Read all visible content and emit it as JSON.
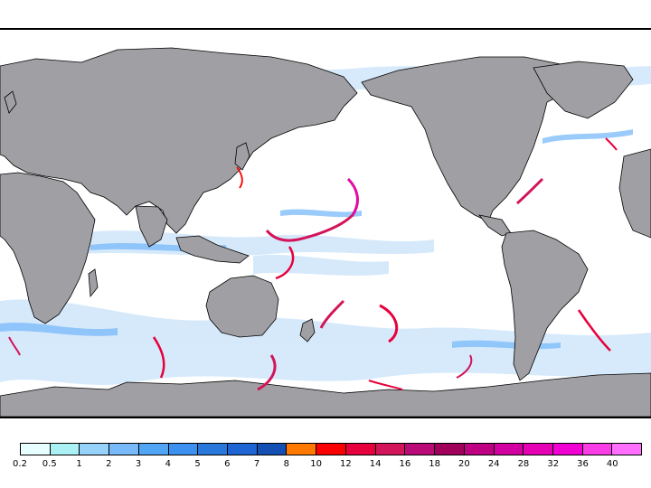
{
  "map": {
    "type": "global precipitation rate map",
    "projection": "equirectangular",
    "land_color": "#a0a0a4",
    "ocean_color": "#ffffff",
    "border_color": "#000000"
  },
  "legend": {
    "colors": [
      "#e8ffff",
      "#aaf0f5",
      "#96d2fa",
      "#78b9fa",
      "#50a5f5",
      "#3c91f0",
      "#2878dc",
      "#1e64d2",
      "#1450b4",
      "#ff7800",
      "#fa0000",
      "#e6003c",
      "#d2145a",
      "#b90a78",
      "#a0005a",
      "#be0082",
      "#d200a0",
      "#e600b4",
      "#f000d2",
      "#fa3ce6",
      "#ff6eff"
    ],
    "labels": [
      "0.2",
      "0.5",
      "1",
      "2",
      "3",
      "4",
      "5",
      "6",
      "7",
      "8",
      "10",
      "12",
      "14",
      "16",
      "18",
      "20",
      "24",
      "28",
      "32",
      "36",
      "40"
    ]
  }
}
